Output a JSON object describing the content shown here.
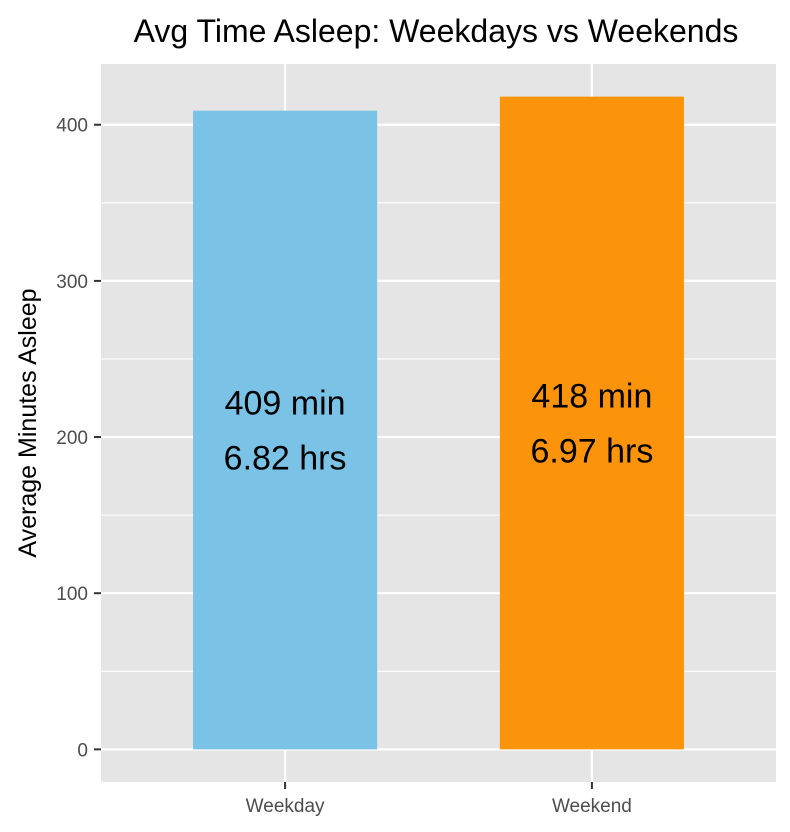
{
  "chart_data": {
    "type": "bar",
    "title": "Avg Time Asleep: Weekdays vs Weekends",
    "xlabel": "",
    "ylabel": "Average Minutes Asleep",
    "categories": [
      "Weekday",
      "Weekend"
    ],
    "values": [
      409,
      418
    ],
    "bar_labels": [
      [
        "409 min",
        "6.82 hrs"
      ],
      [
        "418 min",
        "6.97 hrs"
      ]
    ],
    "colors": [
      "#7AC3E6",
      "#FB940A"
    ],
    "yticks": [
      0,
      100,
      200,
      300,
      400
    ],
    "ytick_labels": [
      "0",
      "100",
      "200",
      "300",
      "400"
    ],
    "ylim": [
      -20.9,
      438.9
    ],
    "grid": true,
    "legend": "none",
    "panel_background": "#E5E5E5",
    "gridline_color": "#FFFFFF"
  }
}
